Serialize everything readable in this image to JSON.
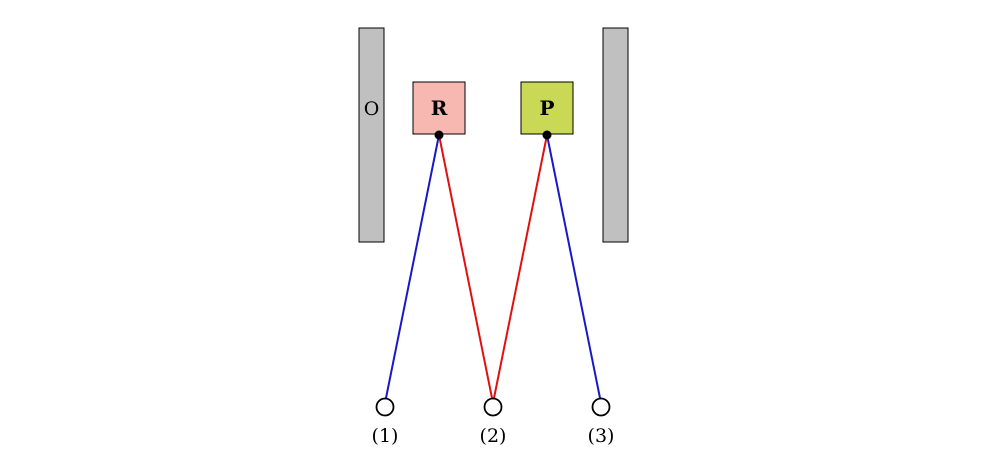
{
  "diagram": {
    "left_panel_label": "O",
    "box_r_label": "R",
    "box_p_label": "P",
    "node_1_label": "(1)",
    "node_2_label": "(2)",
    "node_3_label": "(3)"
  },
  "colors": {
    "panel_fill": "#c0c0c0",
    "box_r_fill": "#f6b8b1",
    "box_p_fill": "#c9d956",
    "red_line": "#e01010",
    "blue_line": "#1818c8",
    "stroke": "#000000"
  },
  "edges": [
    {
      "from": "box-r",
      "to": "node-1",
      "color": "blue"
    },
    {
      "from": "box-r",
      "to": "node-2",
      "color": "red"
    },
    {
      "from": "box-p",
      "to": "node-2",
      "color": "red"
    },
    {
      "from": "box-p",
      "to": "node-3",
      "color": "blue"
    }
  ]
}
